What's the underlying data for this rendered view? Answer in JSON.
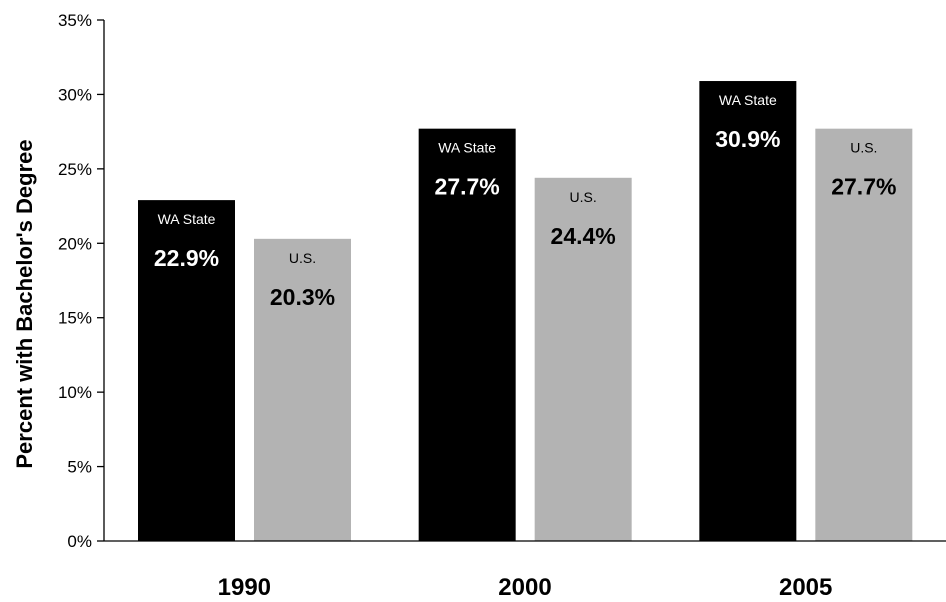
{
  "chart_data": {
    "type": "bar",
    "title": "",
    "xlabel": "",
    "ylabel": "Percent with Bachelor's Degree",
    "categories": [
      "1990",
      "2000",
      "2005"
    ],
    "ylim": [
      0,
      35
    ],
    "yticks": [
      0,
      5,
      10,
      15,
      20,
      25,
      30,
      35
    ],
    "ytick_labels": [
      "0%",
      "5%",
      "10%",
      "15%",
      "20%",
      "25%",
      "30%",
      "35%"
    ],
    "grid": false,
    "legend": "none",
    "series": [
      {
        "name": "WA State",
        "color": "#000000",
        "text_color": "#ffffff",
        "values": [
          22.9,
          27.7,
          30.9
        ],
        "data_labels": [
          "22.9%",
          "27.7%",
          "30.9%"
        ]
      },
      {
        "name": "U.S.",
        "color": "#b3b3b3",
        "text_color": "#000000",
        "values": [
          20.3,
          24.4,
          27.7
        ],
        "data_labels": [
          "20.3%",
          "24.4%",
          "27.7%"
        ]
      }
    ]
  }
}
